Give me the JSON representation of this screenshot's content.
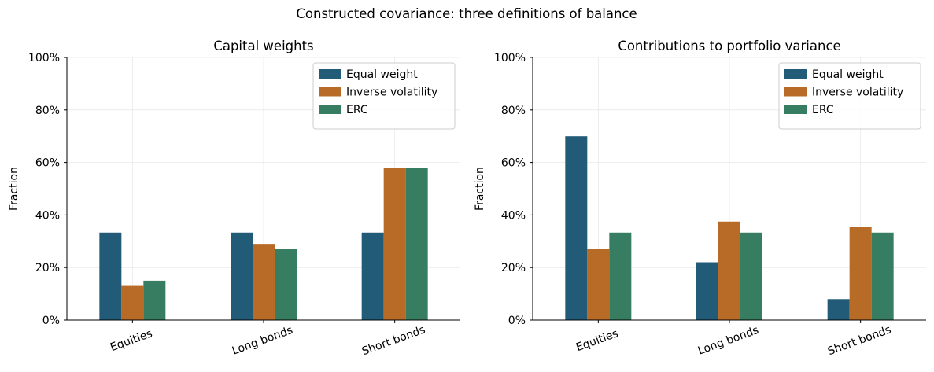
{
  "figure": {
    "suptitle": "Constructed covariance: three definitions of balance"
  },
  "colors": {
    "Equal weight": "#225b77",
    "Inverse volatility": "#b86b27",
    "ERC": "#367d62"
  },
  "chart_data": [
    {
      "type": "bar",
      "title": "Capital weights",
      "xlabel": "",
      "ylabel": "Fraction",
      "ylim": [
        0,
        1
      ],
      "y_ticks": [
        "0%",
        "20%",
        "40%",
        "60%",
        "80%",
        "100%"
      ],
      "categories": [
        "Equities",
        "Long bonds",
        "Short bonds"
      ],
      "series": [
        {
          "name": "Equal weight",
          "values": [
            0.333,
            0.333,
            0.333
          ]
        },
        {
          "name": "Inverse volatility",
          "values": [
            0.13,
            0.29,
            0.58
          ]
        },
        {
          "name": "ERC",
          "values": [
            0.15,
            0.27,
            0.58
          ]
        }
      ],
      "grid": true,
      "legend": "top-right"
    },
    {
      "type": "bar",
      "title": "Contributions to portfolio variance",
      "xlabel": "",
      "ylabel": "Fraction",
      "ylim": [
        0,
        1
      ],
      "y_ticks": [
        "0%",
        "20%",
        "40%",
        "60%",
        "80%",
        "100%"
      ],
      "categories": [
        "Equities",
        "Long bonds",
        "Short bonds"
      ],
      "series": [
        {
          "name": "Equal weight",
          "values": [
            0.7,
            0.22,
            0.08
          ]
        },
        {
          "name": "Inverse volatility",
          "values": [
            0.27,
            0.375,
            0.355
          ]
        },
        {
          "name": "ERC",
          "values": [
            0.333,
            0.333,
            0.333
          ]
        }
      ],
      "grid": true,
      "legend": "top-right"
    }
  ]
}
